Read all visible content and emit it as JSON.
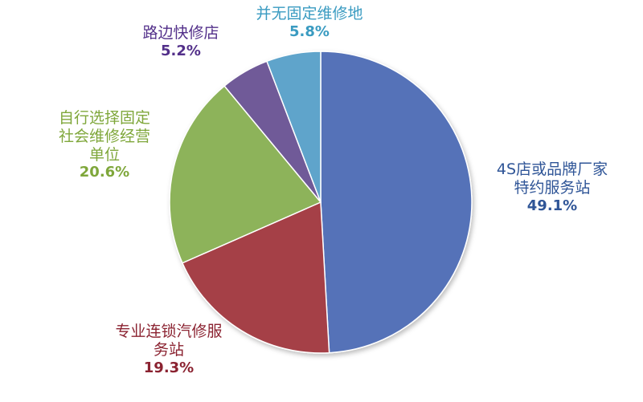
{
  "chart_data": {
    "type": "pie",
    "start_angle_deg": 0,
    "direction": "clockwise",
    "slices": [
      {
        "label": "4S店或品牌厂家特约服务站",
        "label_lines": [
          "4S店或品牌厂家",
          "特约服务站"
        ],
        "value": 49.1,
        "value_text": "49.1%",
        "color": "#5572B8"
      },
      {
        "label": "专业连锁汽修服务站",
        "label_lines": [
          "专业连锁汽修服",
          "务站"
        ],
        "value": 19.3,
        "value_text": "19.3%",
        "color": "#A53F47"
      },
      {
        "label": "自行选择固定社会维修经营单位",
        "label_lines": [
          "自行选择固定",
          "社会维修经营",
          "单位"
        ],
        "value": 20.6,
        "value_text": "20.6%",
        "color": "#8DB35A"
      },
      {
        "label": "路边快修店",
        "label_lines": [
          "路边快修店"
        ],
        "value": 5.2,
        "value_text": "5.2%",
        "color": "#6F5A98"
      },
      {
        "label": "并无固定维修地",
        "label_lines": [
          "并无固定维修地"
        ],
        "value": 5.8,
        "value_text": "5.8%",
        "color": "#5FA4CB"
      }
    ],
    "label_colors": [
      "#2F5597",
      "#8B2331",
      "#7FA73B",
      "#53308A",
      "#3A9BC1"
    ]
  }
}
